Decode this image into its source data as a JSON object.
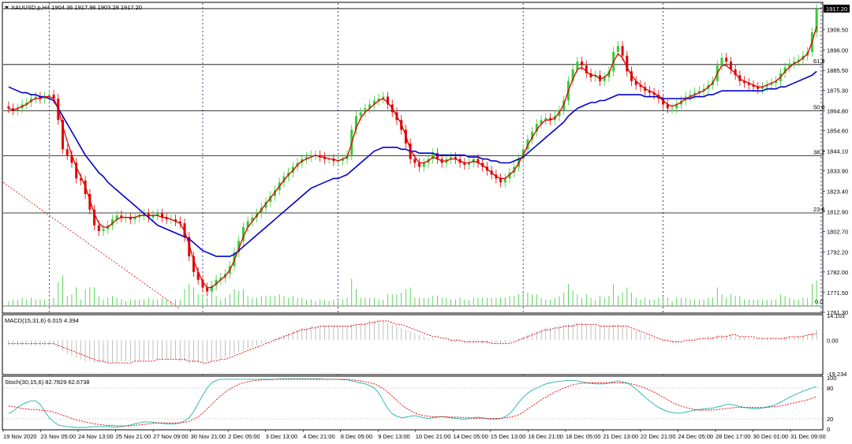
{
  "header": {
    "symbol_line": "XAUUSD.p,H4  1904.36 1917.96 1903.28 1917.20",
    "current_price_label": "1917.20"
  },
  "colors": {
    "bull": "#33cc33",
    "bear": "#e00000",
    "ma_fast": "#e00000",
    "ma_slow": "#0000cc",
    "macd_signal": "#e00000",
    "stoch_main": "#20b2aa",
    "stoch_signal": "#e00000",
    "volume": "#33cc33",
    "current_price_bg": "#000000",
    "current_price_fg": "#ffffff"
  },
  "main_panel": {
    "price_ticks": [
      "1906.50",
      "1896.00",
      "1885.50",
      "1875.30",
      "1864.80",
      "1854.60",
      "1844.10",
      "1833.90",
      "1823.40",
      "1812.90",
      "1802.70",
      "1792.20",
      "1782.00",
      "1771.50",
      "1761.30"
    ],
    "price_range": [
      1761.3,
      1920.0
    ],
    "current_price": 1917.2,
    "fib_levels": [
      {
        "label": "61.8",
        "price": 1888.5
      },
      {
        "label": "50.0",
        "price": 1864.8
      },
      {
        "label": "38.2",
        "price": 1841.6
      },
      {
        "label": "23.6",
        "price": 1812.3
      }
    ],
    "volume_zero_label": "0.0",
    "close_series": [
      1866,
      1865,
      1866,
      1868,
      1869,
      1871,
      1872,
      1871,
      1872,
      1873,
      1871,
      1860,
      1845,
      1842,
      1838,
      1830,
      1829,
      1822,
      1814,
      1806,
      1803,
      1804,
      1806,
      1809,
      1811,
      1810,
      1810,
      1809,
      1810,
      1811,
      1812,
      1810,
      1811,
      1812,
      1810,
      1809,
      1809,
      1808,
      1807,
      1800,
      1790,
      1782,
      1778,
      1774,
      1772,
      1775,
      1778,
      1779,
      1781,
      1785,
      1792,
      1798,
      1805,
      1808,
      1810,
      1812,
      1815,
      1818,
      1821,
      1824,
      1828,
      1831,
      1833,
      1836,
      1838,
      1840,
      1841,
      1842,
      1842,
      1841,
      1840,
      1840,
      1839,
      1839,
      1840,
      1842,
      1855,
      1862,
      1864,
      1866,
      1868,
      1870,
      1871,
      1872,
      1868,
      1864,
      1860,
      1855,
      1848,
      1840,
      1838,
      1836,
      1838,
      1840,
      1843,
      1840,
      1838,
      1840,
      1841,
      1840,
      1838,
      1837,
      1838,
      1840,
      1838,
      1836,
      1834,
      1832,
      1830,
      1828,
      1830,
      1833,
      1836,
      1840,
      1845,
      1850,
      1854,
      1858,
      1860,
      1861,
      1860,
      1862,
      1865,
      1870,
      1880,
      1886,
      1890,
      1888,
      1884,
      1882,
      1883,
      1880,
      1882,
      1885,
      1895,
      1898,
      1893,
      1885,
      1880,
      1878,
      1877,
      1875,
      1874,
      1873,
      1871,
      1868,
      1866,
      1866,
      1868,
      1870,
      1872,
      1873,
      1874,
      1875,
      1876,
      1878,
      1880,
      1888,
      1892,
      1890,
      1886,
      1883,
      1880,
      1879,
      1878,
      1877,
      1876,
      1877,
      1878,
      1879,
      1880,
      1884,
      1887,
      1889,
      1890,
      1891,
      1893,
      1895,
      1905,
      1917
    ],
    "ma_fast_series": [
      1866,
      1865,
      1866,
      1867,
      1868,
      1870,
      1871,
      1871,
      1872,
      1872,
      1871,
      1866,
      1857,
      1849,
      1842,
      1836,
      1831,
      1826,
      1819,
      1812,
      1807,
      1805,
      1805,
      1807,
      1809,
      1810,
      1810,
      1810,
      1810,
      1811,
      1811,
      1811,
      1811,
      1811,
      1810,
      1810,
      1809,
      1808,
      1807,
      1803,
      1796,
      1788,
      1782,
      1777,
      1774,
      1774,
      1776,
      1778,
      1780,
      1783,
      1788,
      1794,
      1800,
      1805,
      1808,
      1811,
      1814,
      1817,
      1820,
      1823,
      1826,
      1829,
      1832,
      1834,
      1837,
      1839,
      1840,
      1841,
      1842,
      1841,
      1841,
      1840,
      1840,
      1839,
      1840,
      1841,
      1848,
      1856,
      1861,
      1864,
      1866,
      1868,
      1870,
      1871,
      1869,
      1866,
      1862,
      1858,
      1852,
      1845,
      1841,
      1838,
      1838,
      1839,
      1841,
      1840,
      1839,
      1839,
      1840,
      1840,
      1839,
      1838,
      1838,
      1839,
      1838,
      1837,
      1835,
      1833,
      1831,
      1830,
      1830,
      1832,
      1834,
      1838,
      1842,
      1847,
      1851,
      1855,
      1858,
      1860,
      1860,
      1861,
      1864,
      1868,
      1875,
      1881,
      1886,
      1887,
      1885,
      1883,
      1883,
      1881,
      1882,
      1884,
      1890,
      1894,
      1892,
      1887,
      1883,
      1880,
      1878,
      1876,
      1875,
      1874,
      1872,
      1870,
      1868,
      1867,
      1868,
      1869,
      1871,
      1872,
      1873,
      1874,
      1875,
      1877,
      1879,
      1884,
      1888,
      1888,
      1886,
      1884,
      1881,
      1880,
      1879,
      1878,
      1877,
      1877,
      1878,
      1879,
      1880,
      1882,
      1885,
      1887,
      1889,
      1890,
      1892,
      1894,
      1900,
      1908
    ],
    "ma_slow_series": [
      1877,
      1876,
      1875,
      1874,
      1874,
      1873,
      1873,
      1872,
      1872,
      1871,
      1870,
      1866,
      1862,
      1858,
      1854,
      1850,
      1846,
      1842,
      1839,
      1836,
      1833,
      1831,
      1828,
      1826,
      1824,
      1822,
      1820,
      1818,
      1816,
      1814,
      1812,
      1810,
      1808,
      1806,
      1805,
      1804,
      1803,
      1802,
      1801,
      1800,
      1799,
      1797,
      1795,
      1793,
      1792,
      1791,
      1790,
      1790,
      1790,
      1790,
      1791,
      1793,
      1795,
      1797,
      1799,
      1801,
      1803,
      1805,
      1807,
      1809,
      1811,
      1813,
      1815,
      1817,
      1819,
      1821,
      1823,
      1825,
      1826,
      1827,
      1828,
      1829,
      1830,
      1830,
      1831,
      1832,
      1834,
      1836,
      1838,
      1840,
      1842,
      1844,
      1845,
      1846,
      1846,
      1846,
      1846,
      1845,
      1845,
      1844,
      1844,
      1843,
      1843,
      1843,
      1843,
      1842,
      1842,
      1842,
      1842,
      1842,
      1842,
      1842,
      1841,
      1841,
      1841,
      1840,
      1840,
      1839,
      1839,
      1838,
      1838,
      1838,
      1839,
      1840,
      1841,
      1843,
      1845,
      1847,
      1849,
      1851,
      1853,
      1855,
      1857,
      1859,
      1862,
      1864,
      1866,
      1867,
      1868,
      1869,
      1869,
      1870,
      1870,
      1871,
      1872,
      1873,
      1873,
      1873,
      1873,
      1873,
      1873,
      1872,
      1872,
      1872,
      1872,
      1871,
      1871,
      1871,
      1871,
      1871,
      1871,
      1871,
      1872,
      1872,
      1872,
      1873,
      1873,
      1874,
      1875,
      1875,
      1875,
      1875,
      1875,
      1875,
      1875,
      1875,
      1875,
      1875,
      1876,
      1876,
      1876,
      1877,
      1877,
      1878,
      1879,
      1880,
      1881,
      1882,
      1883,
      1885
    ]
  },
  "macd_panel": {
    "label": "MACD(15,31,6) 6.015 4.394",
    "ticks": [
      "14.103",
      "0.00",
      "-19.234"
    ],
    "range": [
      -19.234,
      14.103
    ],
    "histogram": [
      -3,
      -3,
      -3,
      -3,
      -3,
      -3,
      -3,
      -3,
      -3,
      -3,
      -3,
      -4,
      -6,
      -8,
      -9,
      -10,
      -11,
      -12,
      -12,
      -13,
      -13,
      -13,
      -13,
      -13,
      -13,
      -12,
      -12,
      -12,
      -12,
      -12,
      -11,
      -11,
      -11,
      -11,
      -11,
      -11,
      -11,
      -11,
      -12,
      -12,
      -13,
      -13,
      -13,
      -13,
      -12,
      -12,
      -11,
      -11,
      -10,
      -9,
      -8,
      -7,
      -6,
      -5,
      -4,
      -3,
      -2,
      -1,
      0,
      1,
      2,
      3,
      4,
      5,
      6,
      7,
      7,
      8,
      8,
      8,
      8,
      8,
      8,
      8,
      8,
      8,
      9,
      9,
      10,
      10,
      11,
      11,
      11,
      11,
      10,
      9,
      8,
      7,
      6,
      5,
      4,
      3,
      2,
      1,
      1,
      0,
      0,
      0,
      -1,
      -1,
      -1,
      -1,
      -1,
      -1,
      -1,
      -2,
      -2,
      -2,
      -2,
      -2,
      -2,
      -1,
      0,
      1,
      2,
      3,
      4,
      5,
      6,
      7,
      7,
      7,
      8,
      8,
      9,
      9,
      10,
      10,
      9,
      9,
      8,
      8,
      8,
      8,
      9,
      9,
      8,
      7,
      6,
      5,
      4,
      3,
      2,
      1,
      0,
      -1,
      -1,
      -1,
      -1,
      0,
      0,
      1,
      1,
      1,
      1,
      2,
      2,
      3,
      3,
      3,
      3,
      2,
      2,
      2,
      1,
      1,
      1,
      1,
      1,
      1,
      1,
      1,
      2,
      2,
      2,
      2,
      3,
      3,
      4,
      6
    ],
    "signal": [
      -2,
      -2,
      -2,
      -2,
      -2,
      -2,
      -2,
      -2,
      -2,
      -2,
      -2,
      -3,
      -4,
      -5,
      -6,
      -7,
      -8,
      -9,
      -10,
      -11,
      -12,
      -12,
      -13,
      -13,
      -13,
      -13,
      -13,
      -13,
      -12,
      -12,
      -12,
      -12,
      -12,
      -11,
      -11,
      -11,
      -11,
      -11,
      -11,
      -11,
      -12,
      -12,
      -12,
      -13,
      -13,
      -12,
      -12,
      -11,
      -11,
      -10,
      -9,
      -8,
      -7,
      -6,
      -5,
      -4,
      -3,
      -2,
      -1,
      0,
      1,
      2,
      3,
      4,
      5,
      6,
      6,
      7,
      7,
      8,
      8,
      8,
      8,
      8,
      8,
      8,
      8,
      9,
      9,
      9,
      10,
      10,
      11,
      11,
      11,
      10,
      9,
      9,
      8,
      7,
      6,
      5,
      4,
      3,
      2,
      2,
      1,
      1,
      0,
      0,
      0,
      -1,
      -1,
      -1,
      -1,
      -1,
      -1,
      -2,
      -2,
      -2,
      -2,
      -2,
      -1,
      0,
      1,
      2,
      3,
      4,
      5,
      6,
      6,
      7,
      7,
      8,
      8,
      8,
      9,
      9,
      9,
      9,
      9,
      8,
      8,
      8,
      8,
      8,
      8,
      8,
      7,
      6,
      5,
      4,
      3,
      2,
      1,
      0,
      0,
      -1,
      -1,
      -1,
      0,
      0,
      0,
      1,
      1,
      1,
      1,
      2,
      2,
      2,
      3,
      3,
      2,
      2,
      2,
      2,
      1,
      1,
      1,
      1,
      1,
      1,
      1,
      2,
      2,
      2,
      2,
      3,
      3,
      4
    ]
  },
  "stoch_panel": {
    "label": "Stoch(30,15,6) 82.7829 62.6738",
    "ticks": [
      "100",
      "80",
      "20",
      "0"
    ],
    "range": [
      0,
      100
    ],
    "main": [
      30,
      35,
      42,
      48,
      52,
      55,
      55,
      48,
      35,
      22,
      14,
      8,
      6,
      5,
      4,
      3,
      3,
      3,
      4,
      5,
      5,
      5,
      5,
      4,
      4,
      5,
      6,
      8,
      10,
      12,
      14,
      14,
      13,
      12,
      11,
      10,
      10,
      10,
      12,
      16,
      22,
      34,
      50,
      66,
      80,
      90,
      95,
      97,
      97,
      97,
      97,
      97,
      97,
      97,
      97,
      97,
      97,
      97,
      97,
      97,
      98,
      98,
      98,
      98,
      98,
      98,
      98,
      98,
      98,
      98,
      97,
      97,
      97,
      97,
      96,
      96,
      94,
      92,
      90,
      88,
      85,
      80,
      70,
      55,
      40,
      30,
      25,
      22,
      23,
      25,
      26,
      24,
      22,
      21,
      22,
      23,
      24,
      23,
      22,
      21,
      20,
      19,
      20,
      22,
      23,
      22,
      20,
      19,
      19,
      20,
      24,
      30,
      40,
      52,
      62,
      70,
      76,
      80,
      84,
      88,
      90,
      92,
      93,
      94,
      95,
      95,
      94,
      92,
      90,
      89,
      88,
      88,
      88,
      90,
      92,
      94,
      92,
      90,
      85,
      78,
      70,
      62,
      55,
      48,
      42,
      38,
      34,
      32,
      31,
      31,
      33,
      35,
      37,
      38,
      39,
      40,
      41,
      43,
      45,
      48,
      48,
      46,
      44,
      42,
      41,
      40,
      40,
      41,
      43,
      45,
      48,
      52,
      57,
      62,
      66,
      70,
      74,
      77,
      80,
      83
    ],
    "signal": [
      45,
      44,
      42,
      40,
      39,
      38,
      38,
      37,
      36,
      35,
      33,
      30,
      27,
      24,
      21,
      18,
      16,
      14,
      12,
      10,
      9,
      8,
      7,
      7,
      6,
      6,
      6,
      6,
      7,
      8,
      9,
      10,
      11,
      12,
      12,
      12,
      12,
      12,
      12,
      13,
      15,
      19,
      24,
      31,
      39,
      48,
      57,
      65,
      72,
      78,
      83,
      87,
      90,
      92,
      94,
      95,
      96,
      96,
      96,
      97,
      97,
      97,
      97,
      97,
      97,
      97,
      97,
      97,
      97,
      97,
      97,
      97,
      97,
      97,
      97,
      97,
      96,
      95,
      94,
      92,
      90,
      88,
      84,
      79,
      72,
      64,
      56,
      48,
      41,
      36,
      31,
      28,
      26,
      25,
      24,
      24,
      24,
      24,
      23,
      23,
      23,
      22,
      22,
      21,
      21,
      21,
      21,
      21,
      21,
      21,
      22,
      23,
      25,
      28,
      33,
      39,
      45,
      51,
      57,
      62,
      67,
      72,
      76,
      80,
      83,
      86,
      88,
      89,
      90,
      90,
      90,
      90,
      90,
      90,
      90,
      90,
      90,
      89,
      88,
      86,
      83,
      80,
      76,
      72,
      67,
      62,
      57,
      52,
      48,
      45,
      42,
      40,
      38,
      37,
      37,
      37,
      37,
      38,
      39,
      40,
      41,
      42,
      42,
      42,
      42,
      42,
      42,
      42,
      42,
      43,
      44,
      45,
      47,
      49,
      51,
      53,
      55,
      57,
      60,
      63
    ]
  },
  "time_axis": {
    "labels": [
      "19 Nov 2020",
      "23 Nov 05:00",
      "24 Nov 13:00",
      "25 Nov 21:00",
      "27 Nov 09:00",
      "30 Nov 21:00",
      "2 Dec 05:00",
      "3 Dec 13:00",
      "4 Dec 21:00",
      "8 Dec 05:00",
      "9 Dec 13:00",
      "10 Dec 21:00",
      "14 Dec 05:00",
      "15 Dec 13:00",
      "16 Dec 21:00",
      "18 Dec 05:00",
      "21 Dec 13:00",
      "22 Dec 21:00",
      "24 Dec 05:00",
      "28 Dec 17:00",
      "30 Dec 01:00",
      "31 Dec 09:00"
    ],
    "day_separator_bars": [
      9,
      43,
      73,
      114,
      145,
      180
    ]
  }
}
